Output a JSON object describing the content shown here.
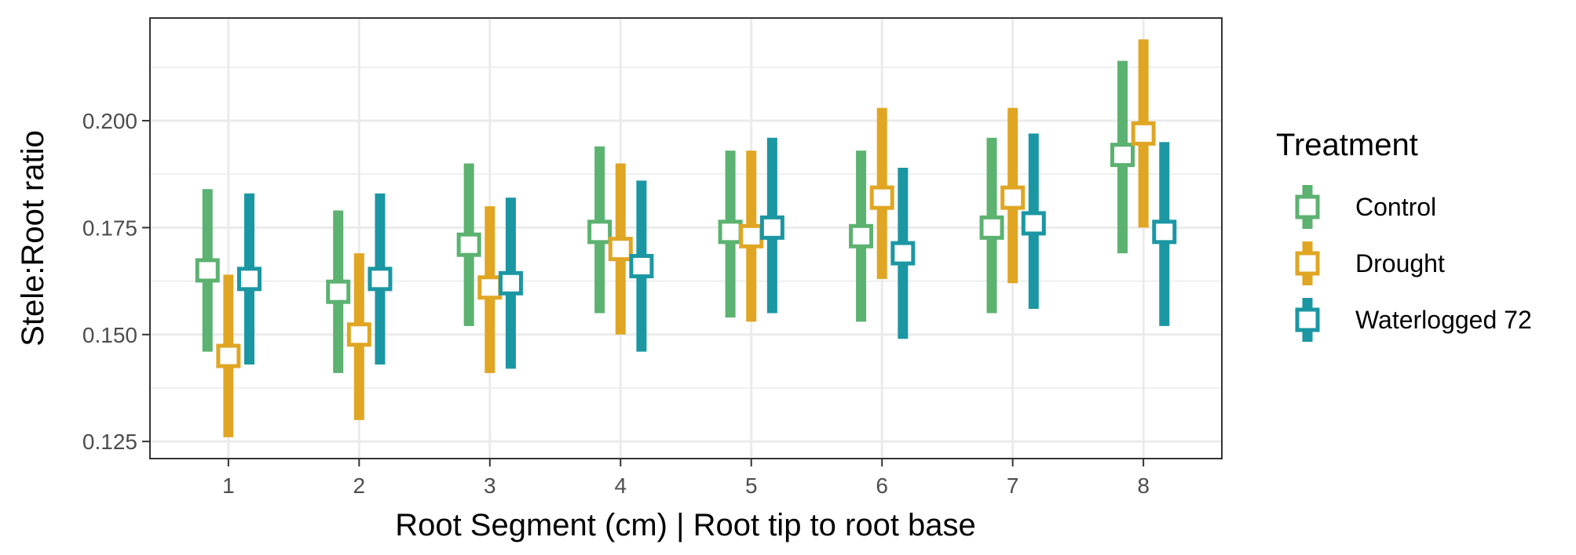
{
  "chart_data": {
    "type": "scatter",
    "title": "",
    "xlabel": "Root Segment (cm) | Root tip to root base",
    "ylabel": "Stele:Root ratio",
    "categories": [
      "1",
      "2",
      "3",
      "4",
      "5",
      "6",
      "7",
      "8"
    ],
    "yticks": [
      "0.125",
      "0.150",
      "0.175",
      "0.200"
    ],
    "ylim": [
      0.121,
      0.224
    ],
    "grid": true,
    "legend": {
      "title": "Treatment",
      "position": "right"
    },
    "series": [
      {
        "name": "Control",
        "color": "#5cb270",
        "mean": [
          0.165,
          0.16,
          0.171,
          0.174,
          0.174,
          0.173,
          0.175,
          0.192
        ],
        "lower": [
          0.146,
          0.141,
          0.152,
          0.155,
          0.154,
          0.153,
          0.155,
          0.169
        ],
        "upper": [
          0.184,
          0.179,
          0.19,
          0.194,
          0.193,
          0.193,
          0.196,
          0.214
        ]
      },
      {
        "name": "Drought",
        "color": "#e0a623",
        "mean": [
          0.145,
          0.15,
          0.161,
          0.17,
          0.173,
          0.182,
          0.182,
          0.197
        ],
        "lower": [
          0.126,
          0.13,
          0.141,
          0.15,
          0.153,
          0.163,
          0.162,
          0.175
        ],
        "upper": [
          0.164,
          0.169,
          0.18,
          0.19,
          0.193,
          0.203,
          0.203,
          0.219
        ]
      },
      {
        "name": "Waterlogged 72",
        "color": "#1b97a3",
        "mean": [
          0.163,
          0.163,
          0.162,
          0.166,
          0.175,
          0.169,
          0.176,
          0.174
        ],
        "lower": [
          0.143,
          0.143,
          0.142,
          0.146,
          0.155,
          0.149,
          0.156,
          0.152
        ],
        "upper": [
          0.183,
          0.183,
          0.182,
          0.186,
          0.196,
          0.189,
          0.197,
          0.195
        ]
      }
    ]
  }
}
